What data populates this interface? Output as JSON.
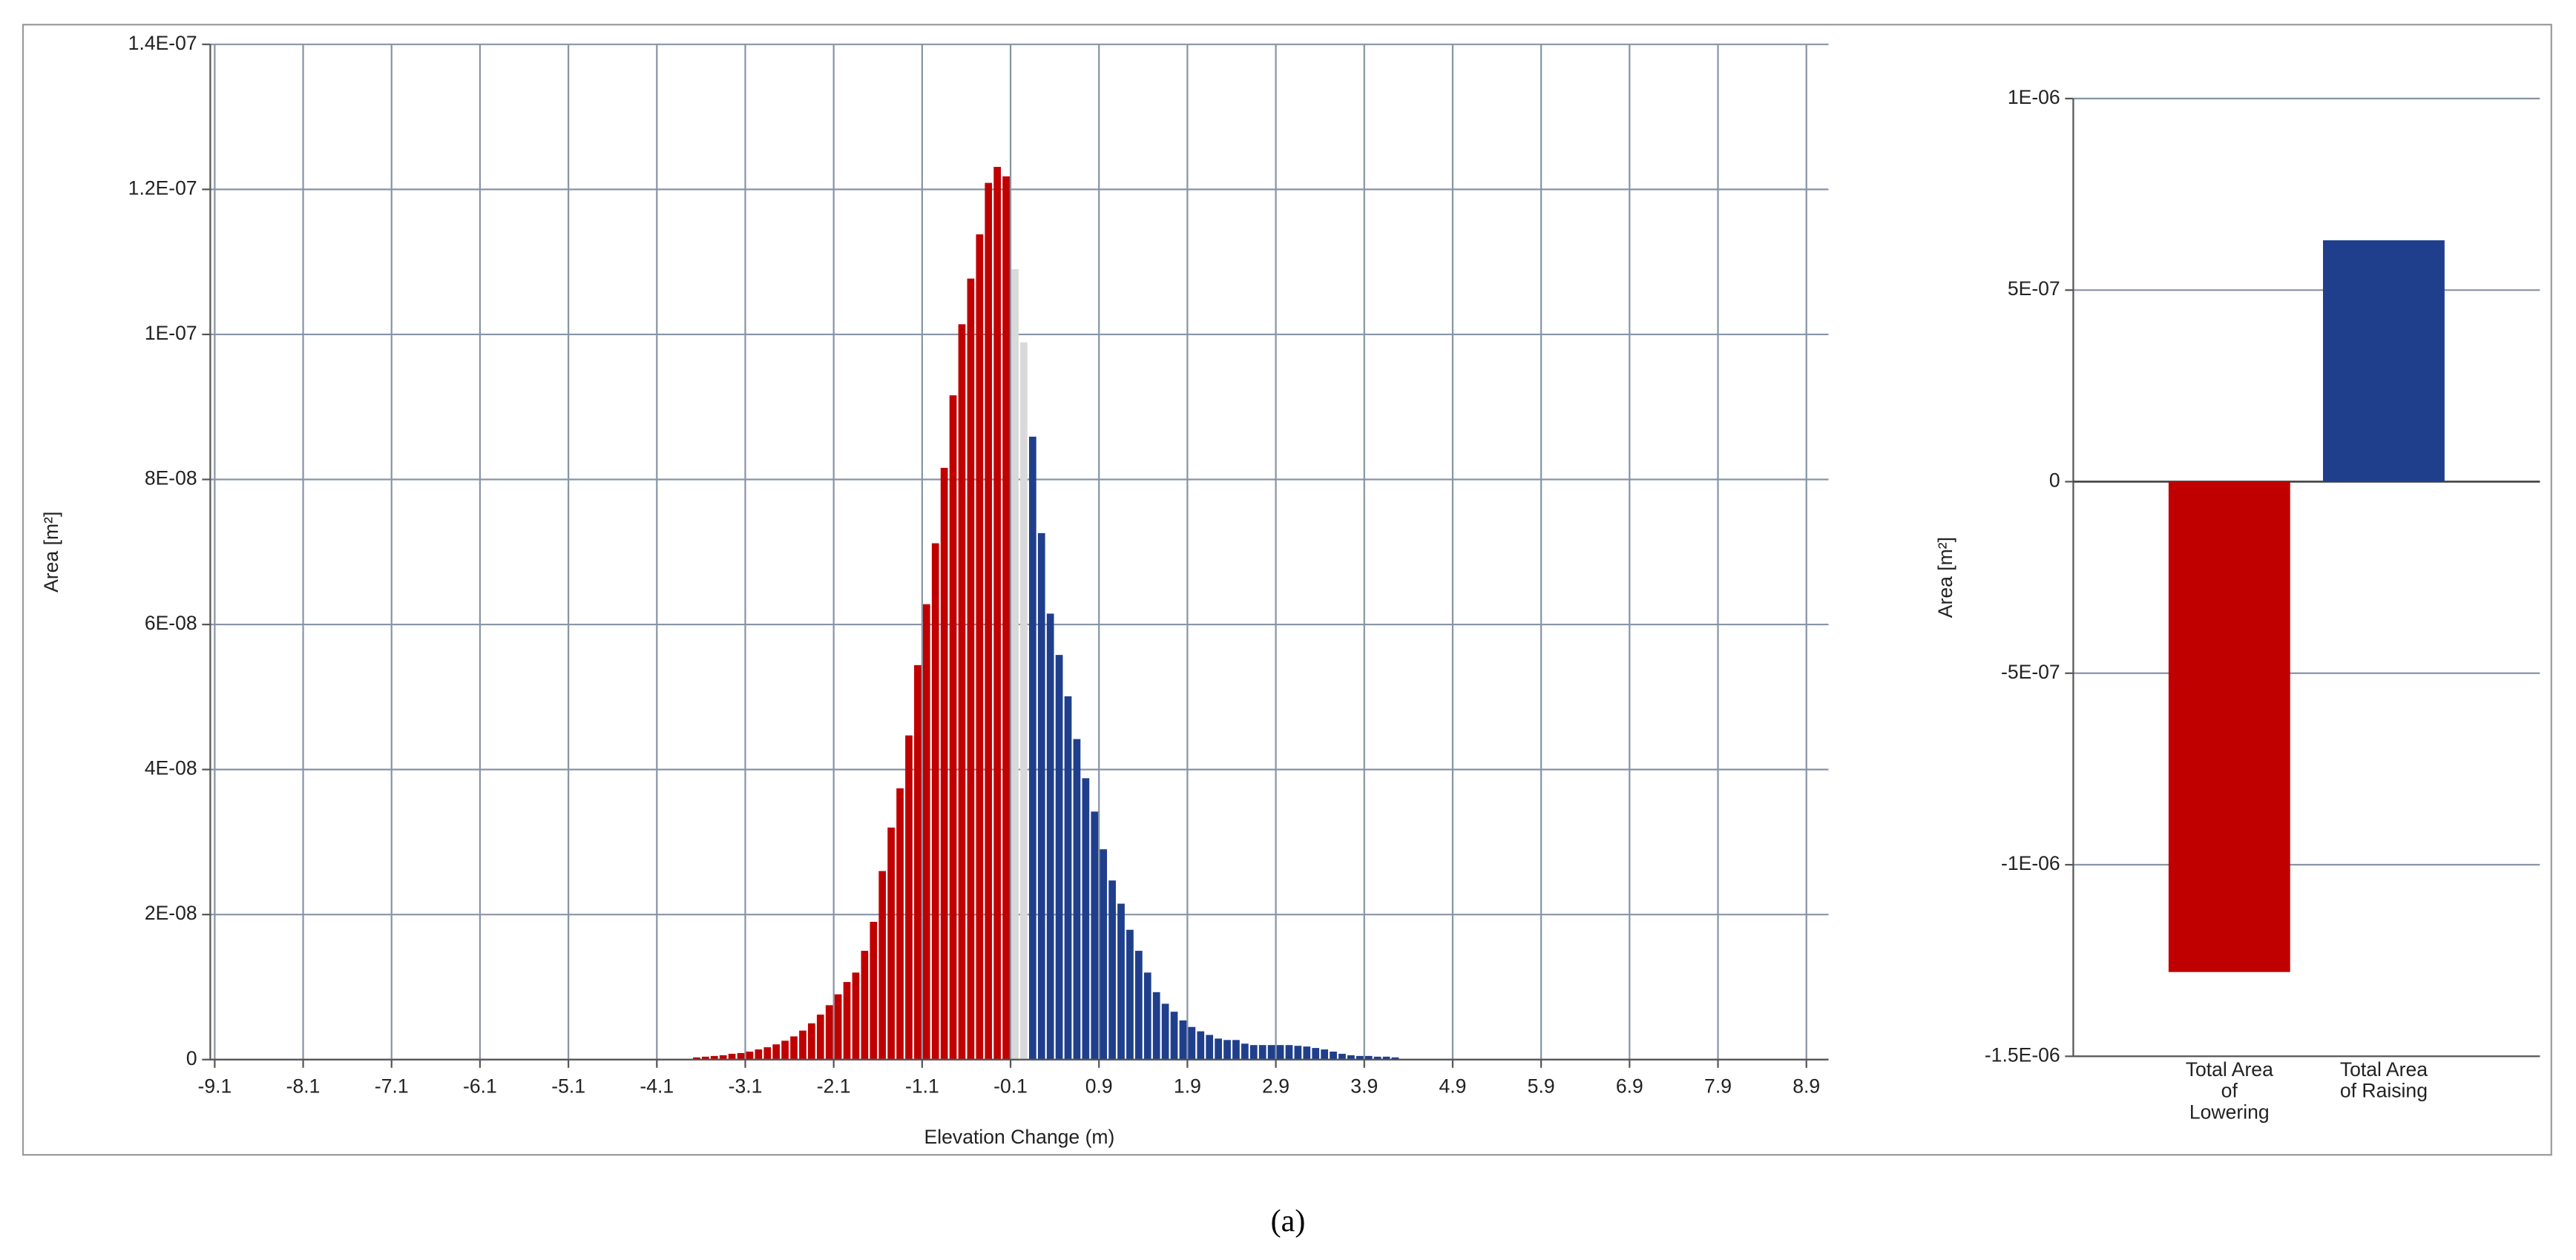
{
  "chart_data": [
    {
      "type": "histogram",
      "xlabel": "Elevation Change (m)",
      "ylabel": "Area [m²]",
      "xlim": [
        -9.15,
        9.15
      ],
      "ylim": [
        0,
        1.4e-07
      ],
      "xticks": [
        -9.1,
        -8.1,
        -7.1,
        -6.1,
        -5.1,
        -4.1,
        -3.1,
        -2.1,
        -1.1,
        -0.1,
        0.9,
        1.9,
        2.9,
        3.9,
        4.9,
        5.9,
        6.9,
        7.9,
        8.9
      ],
      "yticks": [
        0,
        {
          "value": 2e-08,
          "label": "2E-08"
        },
        {
          "value": 4e-08,
          "label": "4E-08"
        },
        {
          "value": 6e-08,
          "label": "6E-08"
        },
        {
          "value": 8e-08,
          "label": "8E-08"
        },
        {
          "value": 1e-07,
          "label": "1E-07"
        },
        {
          "value": 1.2e-07,
          "label": "1.2E-07"
        },
        {
          "value": 1.4e-07,
          "label": "1.4E-07"
        }
      ],
      "grid": true,
      "series": [
        {
          "color": "#c00000",
          "bins": [
            -3.7,
            -3.6,
            -3.5,
            -3.4,
            -3.3,
            -3.2,
            -3.1,
            -3,
            -2.9,
            -2.8,
            -2.7,
            -2.6,
            -2.5,
            -2.4,
            -2.3,
            -2.2,
            -2.1,
            -2,
            -1.9,
            -1.8,
            -1.7,
            -1.6,
            -1.5,
            -1.4,
            -1.3,
            -1.2,
            -1.1,
            -1,
            -0.9,
            -0.8,
            -0.7,
            -0.6,
            -0.5,
            -0.4,
            -0.3,
            -0.2,
            -0.1
          ],
          "values": [
            3e-10,
            4e-10,
            5e-10,
            6e-10,
            8e-10,
            9e-10,
            1.1e-09,
            1.4e-09,
            1.7e-09,
            2.1e-09,
            2.6e-09,
            3.2e-09,
            4e-09,
            5e-09,
            6.2e-09,
            7.5e-09,
            9e-09,
            1.07e-08,
            1.2e-08,
            1.5e-08,
            1.9e-08,
            2.6e-08,
            3.2e-08,
            3.74e-08,
            4.47e-08,
            5.44e-08,
            6.28e-08,
            7.12e-08,
            8.16e-08,
            9.16e-08,
            1.014e-07,
            1.077e-07,
            1.138e-07,
            1.209e-07,
            1.231e-07,
            1.218e-07
          ]
        },
        {
          "color": "#d9d9d9",
          "bins": [
            -0.1,
            0,
            0.1
          ],
          "values": [
            1.09e-07,
            9.89e-08
          ]
        },
        {
          "color": "#1f3f8c",
          "bins": [
            0.1,
            0.2,
            0.3,
            0.4,
            0.5,
            0.6,
            0.7,
            0.8,
            0.9,
            1,
            1.1,
            1.2,
            1.3,
            1.4,
            1.5,
            1.6,
            1.7,
            1.8,
            1.9,
            2,
            2.1,
            2.2,
            2.3,
            2.4,
            2.5,
            2.6,
            2.7,
            2.8,
            2.9,
            3,
            3.1,
            3.2,
            3.3,
            3.4,
            3.5,
            3.6,
            3.7,
            3.8,
            3.9,
            4,
            4.1,
            4.2,
            4.3
          ],
          "values": [
            8.59e-08,
            7.26e-08,
            6.15e-08,
            5.58e-08,
            5.01e-08,
            4.42e-08,
            3.88e-08,
            3.42e-08,
            2.9e-08,
            2.47e-08,
            2.15e-08,
            1.79e-08,
            1.5e-08,
            1.2e-08,
            9.3e-09,
            7.7e-09,
            6.6e-09,
            5.4e-09,
            4.5e-09,
            3.9e-09,
            3.4e-09,
            2.9e-09,
            2.7e-09,
            2.7e-09,
            2.2e-09,
            2e-09,
            2e-09,
            2e-09,
            2e-09,
            2e-09,
            1.9e-09,
            1.8e-09,
            1.6e-09,
            1.4e-09,
            1.1e-09,
            8e-10,
            6e-10,
            5e-10,
            5e-10,
            4e-10,
            4e-10,
            3e-10
          ]
        }
      ]
    },
    {
      "type": "bar",
      "ylabel": "Area [m²]",
      "categories": [
        "Total Area of Lowering",
        "Total Area of Raising"
      ],
      "values": [
        -1.28e-06,
        6.3e-07
      ],
      "colors": [
        "#c00000",
        "#1f3f8c"
      ],
      "ylim": [
        -1.5e-06,
        1e-06
      ],
      "yticks": [
        {
          "value": -1.5e-06,
          "label": "-1.5E-06"
        },
        {
          "value": -1e-06,
          "label": "-1E-06"
        },
        {
          "value": -5e-07,
          "label": "-5E-07"
        },
        0,
        {
          "value": 5e-07,
          "label": "5E-07"
        },
        {
          "value": 1e-06,
          "label": "1E-06"
        }
      ],
      "grid": true
    }
  ],
  "caption": "(a)"
}
